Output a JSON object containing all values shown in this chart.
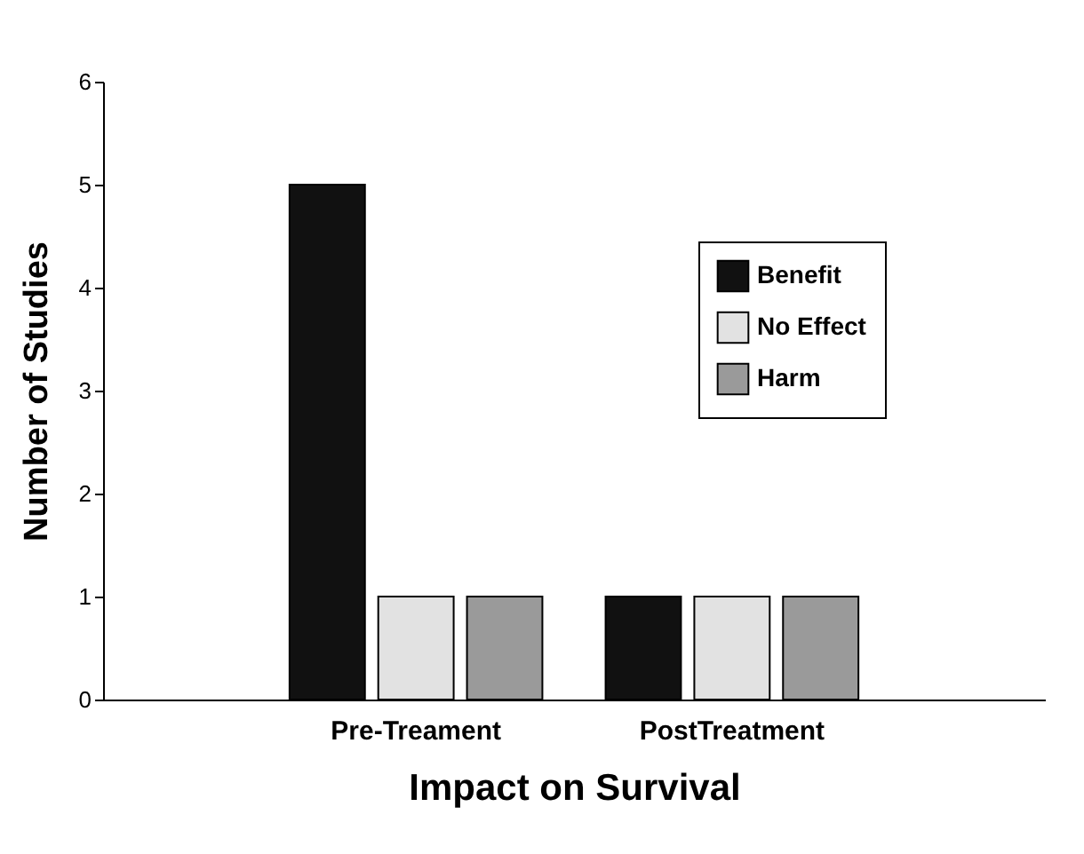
{
  "chart_data": {
    "type": "bar",
    "xlabel": "Impact on Survival",
    "ylabel": "Number of Studies",
    "categories": [
      "Pre-Treament",
      "PostTreatment"
    ],
    "series": [
      {
        "name": "Benefit",
        "color": "#111111",
        "values": [
          5,
          1
        ]
      },
      {
        "name": "No Effect",
        "color": "#e2e2e2",
        "values": [
          1,
          1
        ]
      },
      {
        "name": "Harm",
        "color": "#9a9a9a",
        "values": [
          1,
          1
        ]
      }
    ],
    "ylim": [
      0,
      6
    ],
    "yticks": [
      0,
      1,
      2,
      3,
      4,
      5,
      6
    ],
    "grid": false,
    "legend": "top right"
  }
}
